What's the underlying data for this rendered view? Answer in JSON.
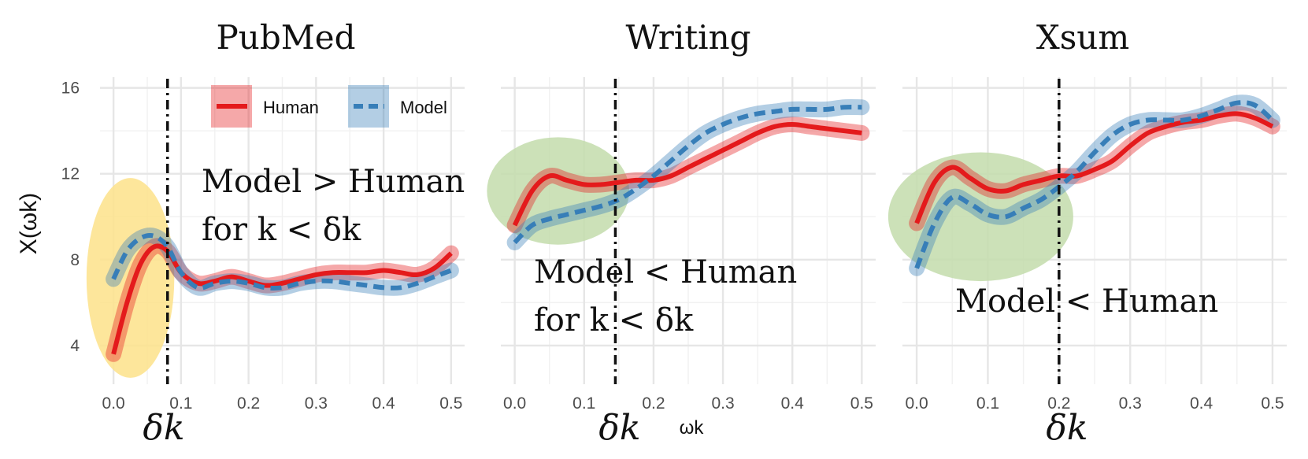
{
  "chart_data": [
    {
      "type": "line",
      "title": "PubMed",
      "x": [
        0.0,
        0.02,
        0.04,
        0.06,
        0.08,
        0.1,
        0.125,
        0.15,
        0.175,
        0.2,
        0.225,
        0.25,
        0.275,
        0.3,
        0.325,
        0.35,
        0.375,
        0.4,
        0.425,
        0.45,
        0.475,
        0.5
      ],
      "series": [
        {
          "name": "Human",
          "values": [
            3.6,
            6.0,
            7.8,
            8.6,
            8.4,
            7.4,
            6.9,
            7.0,
            7.2,
            7.0,
            6.8,
            6.9,
            7.1,
            7.3,
            7.4,
            7.4,
            7.4,
            7.5,
            7.4,
            7.3,
            7.6,
            8.3
          ]
        },
        {
          "name": "Model",
          "values": [
            7.1,
            8.4,
            9.0,
            9.1,
            8.6,
            7.4,
            6.7,
            6.9,
            7.0,
            6.9,
            6.7,
            6.7,
            6.9,
            7.0,
            7.0,
            6.9,
            6.8,
            6.7,
            6.7,
            6.9,
            7.2,
            7.5
          ]
        }
      ],
      "delta_k": 0.08,
      "highlight": {
        "color": "#fde28a",
        "x_range": [
          -0.04,
          0.09
        ],
        "y_range": [
          2.5,
          11.8
        ]
      },
      "annotation": [
        "Model > Human",
        "for k < δk"
      ],
      "delta_label": "δk"
    },
    {
      "type": "line",
      "title": "Writing",
      "x": [
        0.0,
        0.025,
        0.05,
        0.075,
        0.1,
        0.125,
        0.15,
        0.175,
        0.2,
        0.225,
        0.25,
        0.275,
        0.3,
        0.325,
        0.35,
        0.375,
        0.4,
        0.425,
        0.45,
        0.475,
        0.5
      ],
      "series": [
        {
          "name": "Human",
          "values": [
            9.6,
            11.2,
            11.9,
            11.7,
            11.5,
            11.5,
            11.6,
            11.7,
            11.7,
            11.9,
            12.3,
            12.7,
            13.1,
            13.5,
            13.9,
            14.2,
            14.3,
            14.2,
            14.1,
            14.0,
            13.9
          ]
        },
        {
          "name": "Model",
          "values": [
            8.8,
            9.6,
            9.9,
            10.1,
            10.3,
            10.5,
            10.8,
            11.3,
            11.9,
            12.6,
            13.3,
            13.9,
            14.3,
            14.6,
            14.8,
            14.9,
            15.0,
            15.0,
            15.0,
            15.1,
            15.1
          ]
        }
      ],
      "delta_k": 0.145,
      "highlight": {
        "color": "#c3dcab",
        "x_range": [
          -0.04,
          0.165
        ],
        "y_range": [
          8.7,
          13.7
        ]
      },
      "annotation": [
        "Model < Human",
        "for k < δk"
      ],
      "delta_label": "δk"
    },
    {
      "type": "line",
      "title": "Xsum",
      "x": [
        0.0,
        0.025,
        0.05,
        0.075,
        0.1,
        0.125,
        0.15,
        0.175,
        0.2,
        0.225,
        0.25,
        0.275,
        0.3,
        0.325,
        0.35,
        0.375,
        0.4,
        0.425,
        0.45,
        0.475,
        0.5
      ],
      "series": [
        {
          "name": "Human",
          "values": [
            9.7,
            11.6,
            12.3,
            11.8,
            11.3,
            11.2,
            11.5,
            11.7,
            11.9,
            11.9,
            12.2,
            12.6,
            13.3,
            13.9,
            14.2,
            14.4,
            14.5,
            14.7,
            14.8,
            14.6,
            14.2
          ]
        },
        {
          "name": "Model",
          "values": [
            7.6,
            9.7,
            10.9,
            10.6,
            10.1,
            10.0,
            10.4,
            10.8,
            11.4,
            12.1,
            13.0,
            13.8,
            14.3,
            14.5,
            14.5,
            14.5,
            14.7,
            15.0,
            15.3,
            15.2,
            14.5
          ]
        }
      ],
      "delta_k": 0.2,
      "highlight": {
        "color": "#c3dcab",
        "x_range": [
          -0.04,
          0.22
        ],
        "y_range": [
          7.0,
          13.0
        ]
      },
      "annotation": [
        "Model < Human"
      ],
      "delta_label": "δk"
    }
  ],
  "axes": {
    "ylabel": "X(ωk)",
    "xlabel": "ωk",
    "xticks": [
      "0.0",
      "0.1",
      "0.2",
      "0.3",
      "0.4",
      "0.5"
    ],
    "yticks": [
      "4",
      "8",
      "12",
      "16"
    ],
    "xlim": [
      -0.02,
      0.52
    ],
    "ylim": [
      2.2,
      16.5
    ]
  },
  "legend": {
    "items": [
      {
        "name": "Human",
        "color": "#e41a1c",
        "dash": "solid"
      },
      {
        "name": "Model",
        "color": "#377eb8",
        "dash": "dashed"
      }
    ],
    "placement": "top-right of first panel"
  },
  "colors": {
    "human": "#e41a1c",
    "model": "#377eb8",
    "yellow_highlight": "#fde28a",
    "green_highlight": "#c3dcab"
  }
}
